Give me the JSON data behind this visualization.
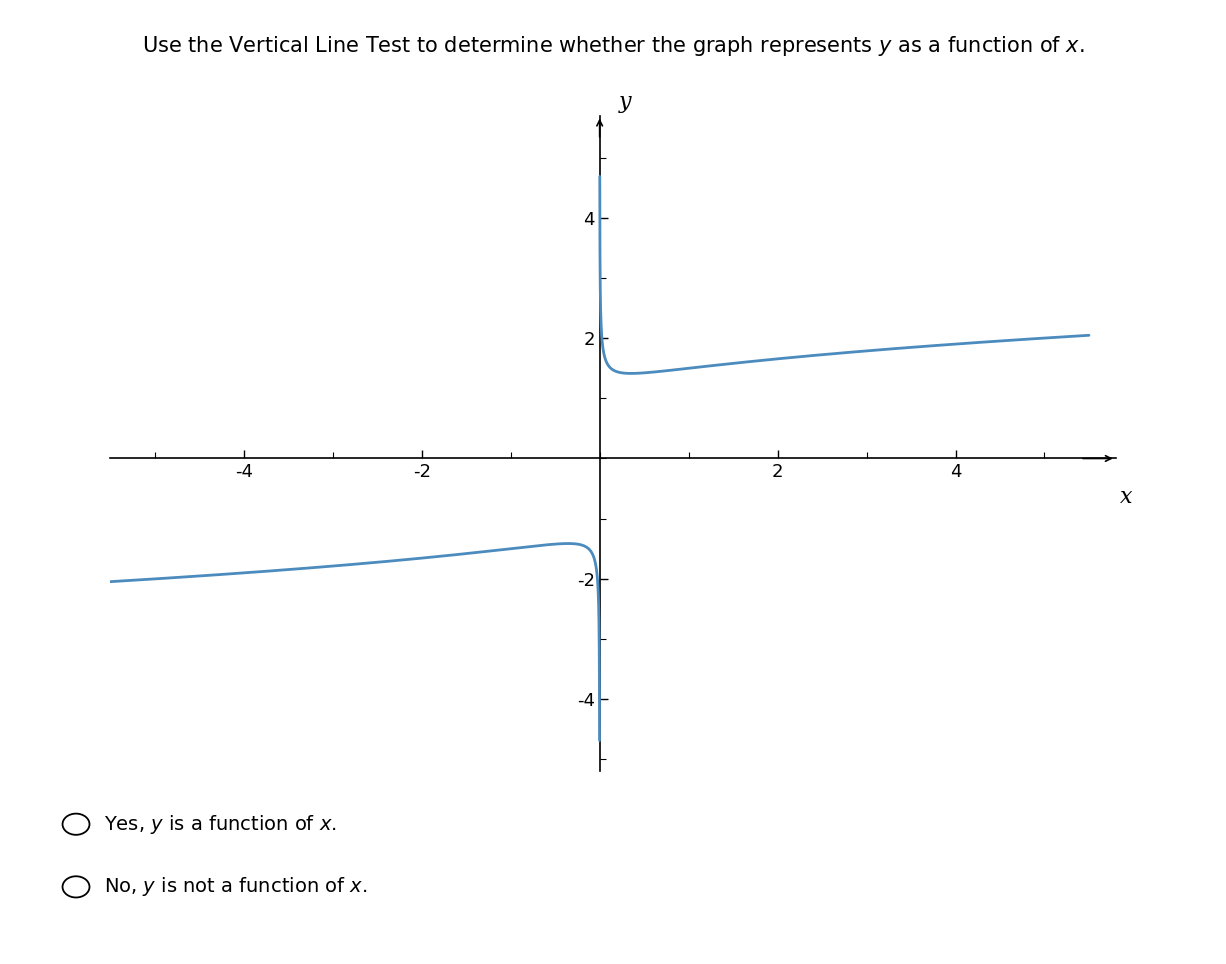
{
  "title_plain": "Use the Vertical Line Test to determine whether the graph represents ",
  "title_y": "y",
  "title_mid": " as a function of ",
  "title_x": "x",
  "title_end": ".",
  "curve_color": "#4B8BBE",
  "curve_linewidth": 2.0,
  "xlim": [
    -5.5,
    5.8
  ],
  "ylim": [
    -5.2,
    5.7
  ],
  "xticks": [
    -4,
    -2,
    2,
    4
  ],
  "yticks": [
    -4,
    -2,
    2,
    4
  ],
  "axis_color": "#000000",
  "background_color": "#ffffff",
  "option1_pre": "Yes, ",
  "option1_y": "y",
  "option1_post": " is a function of ",
  "option1_x": "x",
  "option1_end": ".",
  "option2_pre": "No, ",
  "option2_y": "y",
  "option2_post": " is not a function of ",
  "option2_x": "x",
  "option2_end": ".",
  "tick_fontsize": 13,
  "label_fontsize": 16,
  "title_fontsize": 15,
  "option_fontsize": 14,
  "curve_c": 0.5,
  "curve_eps": 0.0002,
  "curve_xmax": 5.5
}
